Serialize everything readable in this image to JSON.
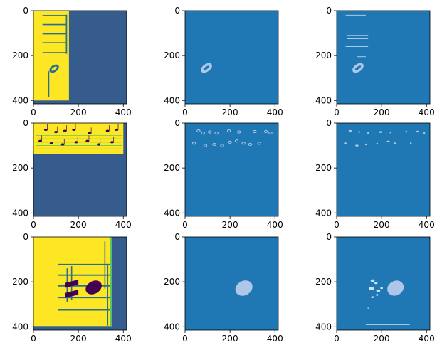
{
  "figure": {
    "background": "#ffffff",
    "colors": {
      "viridis_bg": "#365c8d",
      "viridis_yellow": "#fde725",
      "viridis_dark": "#440154",
      "viridis_line": "#2b6f8e",
      "viridis_green": "#5ec962",
      "tab_blue": "#1f77b4",
      "tab_light": "#aec7e8",
      "tab_lighter": "#cfe0f3"
    }
  },
  "chart_data": [
    {
      "id": "r1c1",
      "type": "heatmap",
      "subject": "music-notation-crop-input",
      "cmap": "viridis",
      "xlim": [
        0,
        415
      ],
      "ylim": [
        415,
        0
      ],
      "xticks": [
        0,
        200,
        400
      ],
      "yticks": [
        0,
        200,
        400
      ],
      "xtick_labels": [
        "0",
        "200",
        "400"
      ],
      "ytick_labels": [
        "0",
        "200",
        "400"
      ]
    },
    {
      "id": "r1c2",
      "type": "heatmap",
      "subject": "mask",
      "cmap": "tab20",
      "xlim": [
        0,
        415
      ],
      "ylim": [
        415,
        0
      ],
      "xticks": [
        0,
        200,
        400
      ],
      "yticks": [
        0,
        200,
        400
      ],
      "xtick_labels": [
        "0",
        "200",
        "400"
      ],
      "ytick_labels": [
        "0",
        "200",
        "400"
      ]
    },
    {
      "id": "r1c3",
      "type": "heatmap",
      "subject": "prediction",
      "cmap": "tab20",
      "xlim": [
        0,
        415
      ],
      "ylim": [
        415,
        0
      ],
      "xticks": [
        0,
        200,
        400
      ],
      "yticks": [
        0,
        200,
        400
      ],
      "xtick_labels": [
        "0",
        "200",
        "400"
      ],
      "ytick_labels": [
        "0",
        "200",
        "400"
      ]
    },
    {
      "id": "r2c1",
      "type": "heatmap",
      "subject": "music-notation-crop-input",
      "cmap": "viridis",
      "xlim": [
        0,
        415
      ],
      "ylim": [
        415,
        0
      ],
      "xticks": [
        0,
        200,
        400
      ],
      "yticks": [
        0,
        200,
        400
      ],
      "xtick_labels": [
        "0",
        "200",
        "400"
      ],
      "ytick_labels": [
        "0",
        "200",
        "400"
      ]
    },
    {
      "id": "r2c2",
      "type": "heatmap",
      "subject": "mask",
      "cmap": "tab20",
      "xlim": [
        0,
        415
      ],
      "ylim": [
        415,
        0
      ],
      "xticks": [
        0,
        200,
        400
      ],
      "yticks": [
        0,
        200,
        400
      ],
      "xtick_labels": [
        "0",
        "200",
        "400"
      ],
      "ytick_labels": [
        "0",
        "200",
        "400"
      ]
    },
    {
      "id": "r2c3",
      "type": "heatmap",
      "subject": "prediction",
      "cmap": "tab20",
      "xlim": [
        0,
        415
      ],
      "ylim": [
        415,
        0
      ],
      "xticks": [
        0,
        200,
        400
      ],
      "yticks": [
        0,
        200,
        400
      ],
      "xtick_labels": [
        "0",
        "200",
        "400"
      ],
      "ytick_labels": [
        "0",
        "200",
        "400"
      ]
    },
    {
      "id": "r3c1",
      "type": "heatmap",
      "subject": "music-notation-crop-input",
      "cmap": "viridis",
      "xlim": [
        0,
        415
      ],
      "ylim": [
        415,
        0
      ],
      "xticks": [
        0,
        200,
        400
      ],
      "yticks": [
        0,
        200,
        400
      ],
      "xtick_labels": [
        "0",
        "200",
        "400"
      ],
      "ytick_labels": [
        "0",
        "200",
        "400"
      ]
    },
    {
      "id": "r3c2",
      "type": "heatmap",
      "subject": "mask",
      "cmap": "tab20",
      "xlim": [
        0,
        415
      ],
      "ylim": [
        415,
        0
      ],
      "xticks": [
        0,
        200,
        400
      ],
      "yticks": [
        0,
        200,
        400
      ],
      "xtick_labels": [
        "0",
        "200",
        "400"
      ],
      "ytick_labels": [
        "0",
        "200",
        "400"
      ]
    },
    {
      "id": "r3c3",
      "type": "heatmap",
      "subject": "prediction",
      "cmap": "tab20",
      "xlim": [
        0,
        415
      ],
      "ylim": [
        415,
        0
      ],
      "xticks": [
        0,
        200,
        400
      ],
      "yticks": [
        0,
        200,
        400
      ],
      "xtick_labels": [
        "0",
        "200",
        "400"
      ],
      "ytick_labels": [
        "0",
        "200",
        "400"
      ]
    }
  ]
}
